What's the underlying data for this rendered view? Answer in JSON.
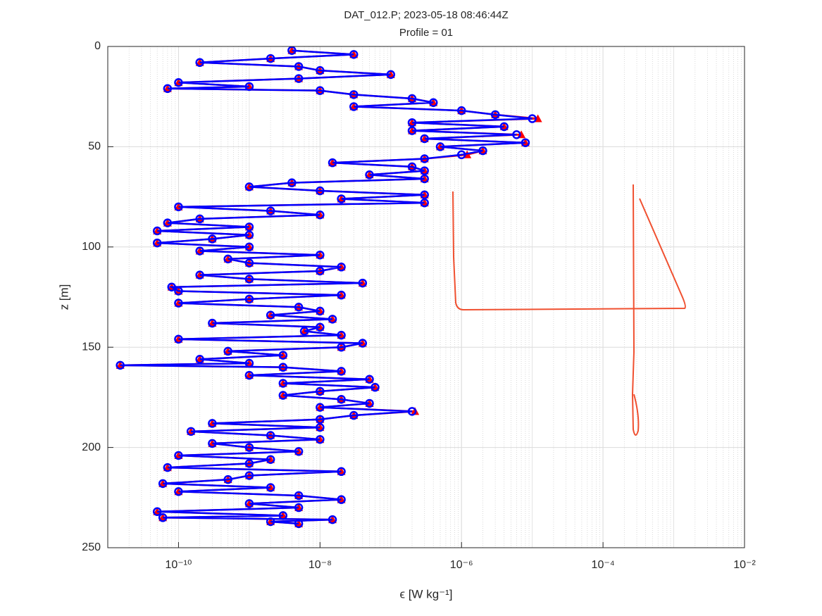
{
  "chart_data": {
    "type": "line",
    "title": "DAT_012.P;  2023-05-18 08:46:44Z",
    "subtitle": "Profile = 01",
    "xlabel": "ϵ [W kg⁻¹]",
    "ylabel": "z [m]",
    "xscale": "log",
    "xlim": [
      1e-11,
      0.01
    ],
    "ylim": [
      0,
      250
    ],
    "yreversed": true,
    "xticks": [
      {
        "value": 1e-10,
        "label": "10⁻¹⁰"
      },
      {
        "value": 1e-08,
        "label": "10⁻⁸"
      },
      {
        "value": 1e-06,
        "label": "10⁻⁶"
      },
      {
        "value": 0.0001,
        "label": "10⁻⁴"
      },
      {
        "value": 0.01,
        "label": "10⁻²"
      }
    ],
    "yticks": [
      0,
      50,
      100,
      150,
      200,
      250
    ],
    "grid": true,
    "minor_grid": true,
    "y": [
      2,
      4,
      6,
      8,
      10,
      12,
      14,
      16,
      18,
      20,
      21,
      22,
      24,
      26,
      28,
      30,
      32,
      34,
      36,
      38,
      40,
      42,
      44,
      46,
      48,
      50,
      52,
      54,
      56,
      58,
      60,
      62,
      64,
      66,
      68,
      70,
      72,
      74,
      76,
      78,
      80,
      82,
      84,
      86,
      88,
      90,
      92,
      94,
      96,
      98,
      100,
      102,
      104,
      106,
      108,
      110,
      112,
      114,
      116,
      118,
      120,
      122,
      124,
      126,
      128,
      130,
      132,
      134,
      136,
      138,
      140,
      142,
      144,
      146,
      148,
      150,
      152,
      154,
      156,
      158,
      159,
      160,
      162,
      164,
      166,
      168,
      170,
      172,
      174,
      176,
      178,
      180,
      182,
      184,
      186,
      188,
      190,
      192,
      194,
      196,
      198,
      200,
      202,
      204,
      206,
      208,
      210,
      212,
      214,
      216,
      218,
      220,
      222,
      224,
      226,
      228,
      230,
      232,
      234,
      235,
      236,
      237,
      238
    ],
    "series": [
      {
        "color": "#ff0000",
        "marker": "triangle",
        "values": [
          4e-09,
          3e-08,
          2e-09,
          2e-10,
          5e-09,
          1e-08,
          1e-07,
          5e-09,
          1e-10,
          1e-09,
          7e-11,
          1e-08,
          3e-08,
          2e-07,
          4e-07,
          3e-08,
          1e-06,
          3e-06,
          1.2e-05,
          2e-07,
          4e-06,
          2e-07,
          7e-06,
          3e-07,
          8e-06,
          5e-07,
          2e-06,
          1.2e-06,
          3e-07,
          1.5e-08,
          2e-07,
          3e-07,
          5e-08,
          3e-07,
          4e-09,
          1e-09,
          1e-08,
          3e-07,
          2e-08,
          3e-07,
          1e-10,
          2e-09,
          1e-08,
          2e-10,
          7e-11,
          1e-09,
          5e-11,
          1e-09,
          3e-10,
          5e-11,
          1e-09,
          2e-10,
          1e-08,
          5e-10,
          1e-09,
          2e-08,
          1e-08,
          2e-10,
          1e-09,
          4e-08,
          8e-11,
          1e-10,
          2e-08,
          1e-09,
          1e-10,
          5e-09,
          1e-08,
          2e-09,
          1.5e-08,
          3e-10,
          1e-08,
          6e-09,
          2e-08,
          1e-10,
          4e-08,
          2e-08,
          5e-10,
          3e-09,
          2e-10,
          1e-09,
          1.5e-11,
          3e-09,
          2e-08,
          1e-09,
          5e-08,
          3e-09,
          6e-08,
          1e-08,
          3e-09,
          2e-08,
          5e-08,
          1e-08,
          2.2e-07,
          3e-08,
          1e-08,
          3e-10,
          1e-08,
          1.5e-10,
          2e-09,
          1e-08,
          3e-10,
          1e-09,
          5e-09,
          1e-10,
          2e-09,
          1e-09,
          7e-11,
          2e-08,
          1e-09,
          5e-10,
          6e-11,
          2e-09,
          1e-10,
          5e-09,
          2e-08,
          1e-09,
          5e-09,
          5e-11,
          3e-09,
          6e-11,
          1.5e-08,
          2e-09,
          5e-09
        ]
      },
      {
        "color": "#0000ff",
        "marker": "circle",
        "values": [
          4e-09,
          3e-08,
          2e-09,
          2e-10,
          5e-09,
          1e-08,
          1e-07,
          5e-09,
          1e-10,
          1e-09,
          7e-11,
          1e-08,
          3e-08,
          2e-07,
          4e-07,
          3e-08,
          1e-06,
          3e-06,
          1e-05,
          2e-07,
          4e-06,
          2e-07,
          6e-06,
          3e-07,
          8e-06,
          5e-07,
          2e-06,
          1e-06,
          3e-07,
          1.5e-08,
          2e-07,
          3e-07,
          5e-08,
          3e-07,
          4e-09,
          1e-09,
          1e-08,
          3e-07,
          2e-08,
          3e-07,
          1e-10,
          2e-09,
          1e-08,
          2e-10,
          7e-11,
          1e-09,
          5e-11,
          1e-09,
          3e-10,
          5e-11,
          1e-09,
          2e-10,
          1e-08,
          5e-10,
          1e-09,
          2e-08,
          1e-08,
          2e-10,
          1e-09,
          4e-08,
          8e-11,
          1e-10,
          2e-08,
          1e-09,
          1e-10,
          5e-09,
          1e-08,
          2e-09,
          1.5e-08,
          3e-10,
          1e-08,
          6e-09,
          2e-08,
          1e-10,
          4e-08,
          2e-08,
          5e-10,
          3e-09,
          2e-10,
          1e-09,
          1.5e-11,
          3e-09,
          2e-08,
          1e-09,
          5e-08,
          3e-09,
          6e-08,
          1e-08,
          3e-09,
          2e-08,
          5e-08,
          1e-08,
          2e-07,
          3e-08,
          1e-08,
          3e-10,
          1e-08,
          1.5e-10,
          2e-09,
          1e-08,
          3e-10,
          1e-09,
          5e-09,
          1e-10,
          2e-09,
          1e-09,
          7e-11,
          2e-08,
          1e-09,
          5e-10,
          6e-11,
          2e-09,
          1e-10,
          5e-09,
          2e-08,
          1e-09,
          5e-09,
          5e-11,
          3e-09,
          6e-11,
          1.5e-08,
          2e-09,
          5e-09
        ]
      }
    ]
  }
}
